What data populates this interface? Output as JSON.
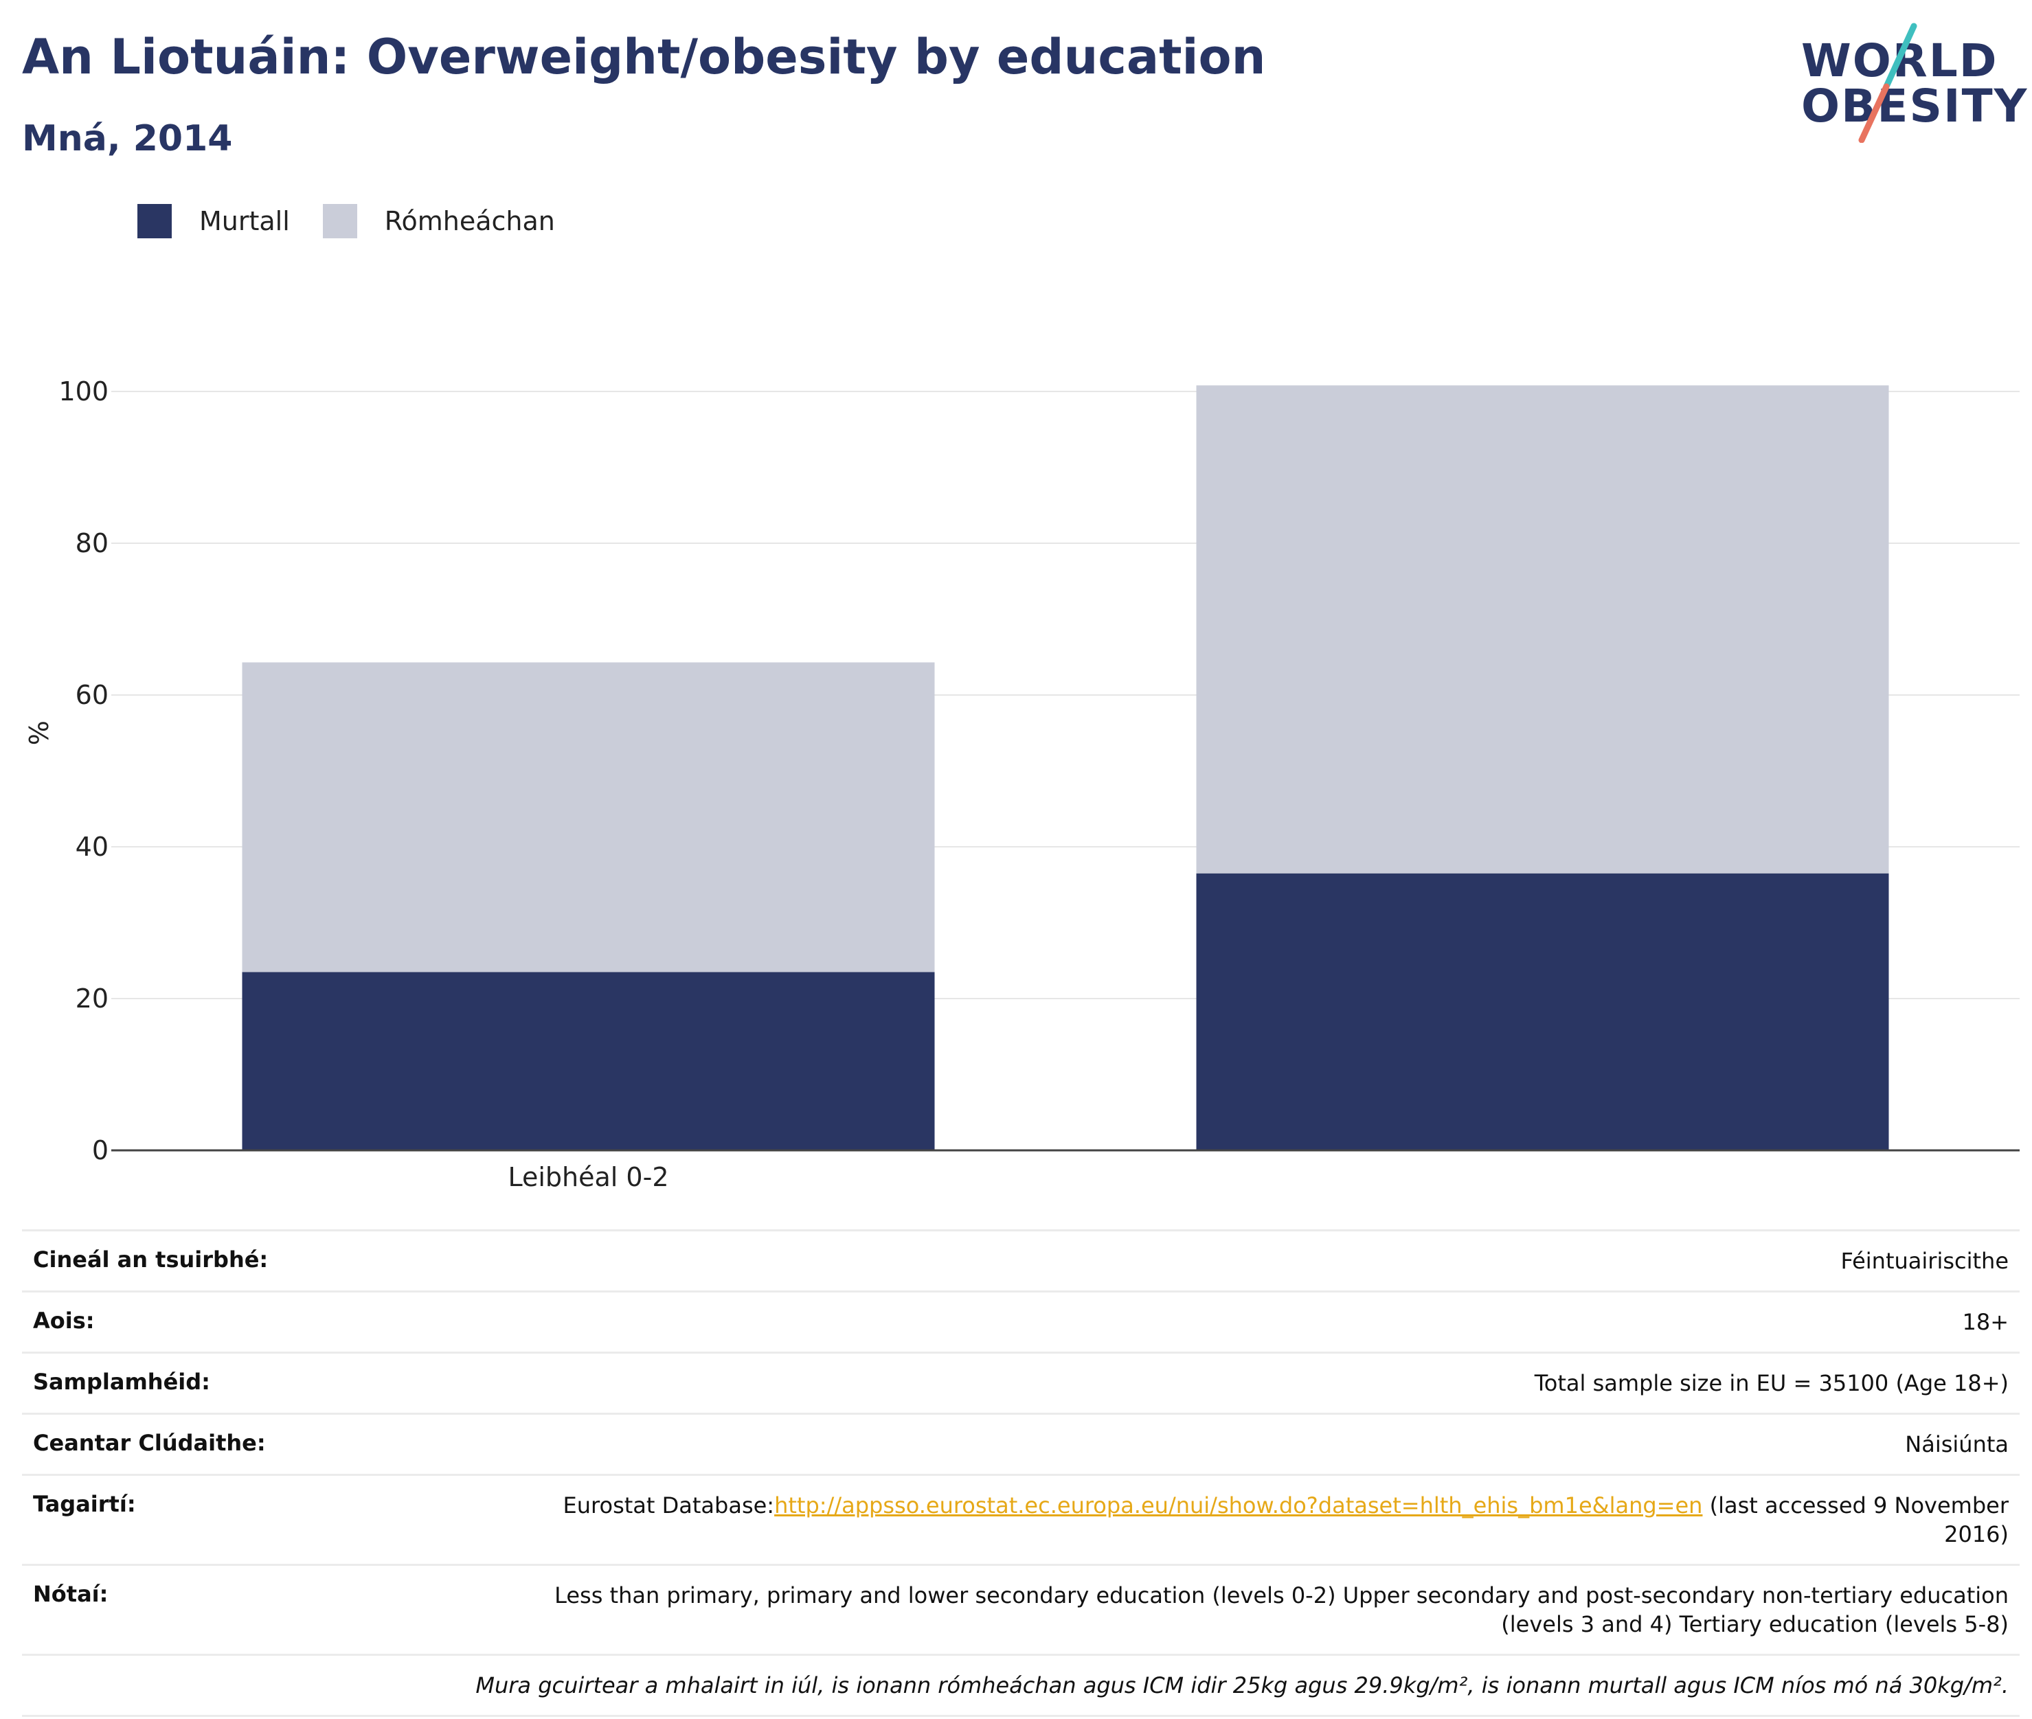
{
  "header": {
    "title": "An Liotuáin: Overweight/obesity by education",
    "subtitle": "Mná, 2014"
  },
  "logo": {
    "line1": "WORLD",
    "line2": "OBESITY",
    "colors": {
      "text": "#283564",
      "slash_top": "#3fbfbf",
      "slash_bottom": "#e8735f"
    }
  },
  "legend": {
    "items": [
      {
        "label": "Murtall",
        "color": "#2a3663"
      },
      {
        "label": "Rómheáchan",
        "color": "#cacdd9"
      }
    ]
  },
  "chart_data": {
    "type": "bar",
    "stacked": true,
    "categories": [
      "Leibhéal 0-2",
      ""
    ],
    "series": [
      {
        "name": "Murtall",
        "color": "#2a3663",
        "values": [
          23.5,
          36.5
        ]
      },
      {
        "name": "Rómheáchan",
        "color": "#cacdd9",
        "values": [
          40.8,
          64.3
        ]
      }
    ],
    "ylabel": "%",
    "ylim": [
      0,
      110
    ],
    "yticks": [
      0,
      20,
      40,
      60,
      80,
      100
    ],
    "grid": true,
    "legend_position": "top-left"
  },
  "info_table": {
    "rows": [
      {
        "label": "Cineál an tsuirbhé:",
        "value": "Féintuairiscithe"
      },
      {
        "label": "Aois:",
        "value": "18+"
      },
      {
        "label": "Samplamhéid:",
        "value": "Total sample size in EU = 35100 (Age 18+)"
      },
      {
        "label": "Ceantar Clúdaithe:",
        "value": "Náisiúnta"
      }
    ],
    "references": {
      "label": "Tagairtí:",
      "prefix": "Eurostat Database:",
      "link": "http://appsso.eurostat.ec.europa.eu/nui/show.do?dataset=hlth_ehis_bm1e&lang=en",
      "suffix": " (last accessed 9 November 2016)"
    },
    "notes": {
      "label": "Nótaí:",
      "value": "Less than primary, primary and lower secondary education (levels 0-2) Upper secondary and post-secondary non-tertiary education (levels 3 and 4) Tertiary education (levels 5-8)"
    },
    "footnote": "Mura gcuirtear a mhalairt in iúl, is ionann rómheáchan agus ICM idir 25kg agus 29.9kg/m², is ionann murtall agus ICM níos mó ná 30kg/m²."
  }
}
